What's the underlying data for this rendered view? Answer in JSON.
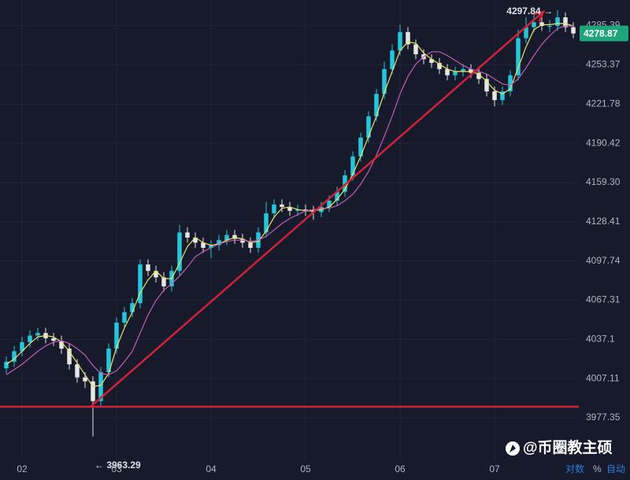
{
  "chart_data": {
    "type": "candlestick",
    "log_scale": true,
    "grid": true,
    "xlim": [
      -5.6,
      141.4
    ],
    "xticks": [
      {
        "value": 0,
        "label": "02"
      },
      {
        "value": 24,
        "label": "03"
      },
      {
        "value": 48,
        "label": "04"
      },
      {
        "value": 72,
        "label": "05"
      },
      {
        "value": 96,
        "label": "06"
      },
      {
        "value": 120,
        "label": "07"
      }
    ],
    "ylim": [
      3945.3,
      4306.2
    ],
    "yticks": [
      3977.35,
      4007.11,
      4037.1,
      {
        "value": 4067.31,
        "label": "4067.31"
      },
      4097.74,
      4128.41,
      {
        "value": 4159.3,
        "label": "4159.30"
      },
      4190.42,
      4221.78,
      4253.37,
      4285.39
    ],
    "up_color": "#26c6da",
    "down_color": "#e6e6e6",
    "x": [
      -4,
      -2,
      0,
      2,
      4,
      6,
      8,
      10,
      12,
      14,
      16,
      18,
      20,
      22,
      24,
      26,
      28,
      30,
      32,
      34,
      36,
      38,
      40,
      42,
      44,
      46,
      48,
      50,
      52,
      54,
      56,
      58,
      60,
      62,
      64,
      66,
      68,
      70,
      72,
      74,
      76,
      78,
      80,
      82,
      84,
      86,
      88,
      90,
      92,
      94,
      96,
      98,
      100,
      102,
      104,
      106,
      108,
      110,
      112,
      114,
      116,
      118,
      120,
      122,
      124,
      126,
      128,
      130,
      132,
      134,
      136,
      138,
      140
    ],
    "open": [
      4015,
      4020,
      4028,
      4035,
      4040,
      4042,
      4038,
      4036,
      4030,
      4018,
      4008,
      4005,
      3990,
      4012,
      4030,
      4050,
      4058,
      4065,
      4095,
      4090,
      4085,
      4078,
      4090,
      4120,
      4116,
      4112,
      4108,
      4110,
      4114,
      4118,
      4115,
      4112,
      4108,
      4120,
      4135,
      4142,
      4140,
      4137,
      4138,
      4137,
      4136,
      4140,
      4145,
      4152,
      4165,
      4180,
      4195,
      4212,
      4230,
      4250,
      4265,
      4280,
      4270,
      4262,
      4258,
      4255,
      4250,
      4245,
      4248,
      4250,
      4247,
      4242,
      4232,
      4225,
      4232,
      4245,
      4275,
      4284,
      4288,
      4285,
      4285,
      4292,
      4284
    ],
    "high": [
      4024,
      4032,
      4039,
      4044,
      4046,
      4046,
      4042,
      4040,
      4034,
      4022,
      4012,
      4009,
      4016,
      4034,
      4054,
      4062,
      4069,
      4099,
      4099,
      4094,
      4089,
      4094,
      4126,
      4124,
      4120,
      4116,
      4114,
      4118,
      4122,
      4122,
      4119,
      4116,
      4124,
      4144,
      4146,
      4146,
      4144,
      4142,
      4142,
      4141,
      4144,
      4149,
      4156,
      4169,
      4184,
      4199,
      4216,
      4234,
      4256,
      4270,
      4286,
      4284,
      4274,
      4266,
      4262,
      4259,
      4254,
      4252,
      4254,
      4254,
      4251,
      4246,
      4236,
      4236,
      4249,
      4282,
      4292,
      4294,
      4293,
      4290,
      4297.84,
      4296,
      4288
    ],
    "low": [
      4011,
      4016,
      4024,
      4031,
      4036,
      4034,
      4032,
      4026,
      4014,
      4004,
      4000,
      3963.29,
      3986,
      4008,
      4026,
      4046,
      4054,
      4061,
      4086,
      4081,
      4074,
      4074,
      4086,
      4112,
      4108,
      4104,
      4100,
      4106,
      4110,
      4111,
      4108,
      4104,
      4104,
      4116,
      4131,
      4136,
      4133,
      4133,
      4133,
      4130,
      4132,
      4136,
      4141,
      4148,
      4161,
      4176,
      4191,
      4208,
      4226,
      4246,
      4261,
      4266,
      4258,
      4254,
      4251,
      4246,
      4241,
      4241,
      4244,
      4243,
      4238,
      4228,
      4220,
      4221,
      4228,
      4241,
      4271,
      4280,
      4281,
      4280,
      4281,
      4280,
      4275
    ],
    "close": [
      4020,
      4028,
      4035,
      4040,
      4042,
      4038,
      4036,
      4030,
      4018,
      4008,
      4005,
      3990,
      4012,
      4030,
      4050,
      4058,
      4065,
      4095,
      4090,
      4085,
      4078,
      4090,
      4120,
      4116,
      4112,
      4108,
      4110,
      4114,
      4118,
      4115,
      4112,
      4108,
      4120,
      4135,
      4142,
      4140,
      4137,
      4138,
      4137,
      4136,
      4140,
      4145,
      4152,
      4165,
      4180,
      4195,
      4212,
      4230,
      4250,
      4265,
      4280,
      4270,
      4262,
      4258,
      4255,
      4250,
      4245,
      4248,
      4250,
      4247,
      4242,
      4232,
      4225,
      4232,
      4245,
      4275,
      4284,
      4288,
      4285,
      4285,
      4292,
      4284,
      4278.87
    ],
    "series": [
      {
        "color": "#e8e36a",
        "values": [
          4018,
          4022,
          4028,
          4034,
          4039,
          4040,
          4039,
          4035,
          4028,
          4019,
          4010,
          4001,
          4002,
          4011,
          4031,
          4046,
          4058,
          4073,
          4083,
          4090,
          4084,
          4084,
          4096,
          4109,
          4116,
          4112,
          4110,
          4111,
          4114,
          4116,
          4115,
          4112,
          4113,
          4121,
          4132,
          4139,
          4140,
          4138,
          4137,
          4137,
          4138,
          4140,
          4146,
          4154,
          4166,
          4180,
          4196,
          4212,
          4231,
          4248,
          4265,
          4272,
          4271,
          4263,
          4258,
          4254,
          4250,
          4248,
          4248,
          4248,
          4246,
          4240,
          4233,
          4230,
          4234,
          4251,
          4268,
          4282,
          4286,
          4286,
          4287,
          4287,
          4285
        ]
      },
      {
        "color": "#c45bb8",
        "values": [
          4010,
          4014,
          4018,
          4023,
          4028,
          4032,
          4035,
          4036,
          4034,
          4030,
          4025,
          4017,
          4011,
          4010,
          4013,
          4020,
          4028,
          4042,
          4056,
          4067,
          4075,
          4080,
          4086,
          4093,
          4101,
          4105,
          4108,
          4111,
          4113,
          4114,
          4114,
          4113,
          4114,
          4117,
          4122,
          4127,
          4131,
          4134,
          4137,
          4138,
          4139,
          4139,
          4141,
          4145,
          4150,
          4158,
          4168,
          4181,
          4196,
          4212,
          4230,
          4244,
          4254,
          4260,
          4264,
          4264,
          4261,
          4257,
          4253,
          4250,
          4248,
          4246,
          4242,
          4238,
          4237,
          4242,
          4251,
          4261,
          4270,
          4277,
          4283,
          4285,
          4285
        ]
      }
    ],
    "line_color": "#d0233a",
    "trend_line": {
      "x": [
        17.4,
        132.4
      ],
      "y": [
        3985.7,
        4296.7
      ]
    },
    "horizontal_line": 3985.7,
    "annotations": [
      {
        "text": "4297.84 →",
        "x": 136,
        "value": 4297.84
      },
      {
        "text": "← 3963.29",
        "x": 18,
        "value": 3963.29
      }
    ],
    "last_price": 4278.87,
    "last_price_color": "#1fa37a"
  },
  "ui": {
    "watermark": "@币圈教主硕",
    "buttons": [
      "对数",
      "%",
      "自动"
    ]
  }
}
